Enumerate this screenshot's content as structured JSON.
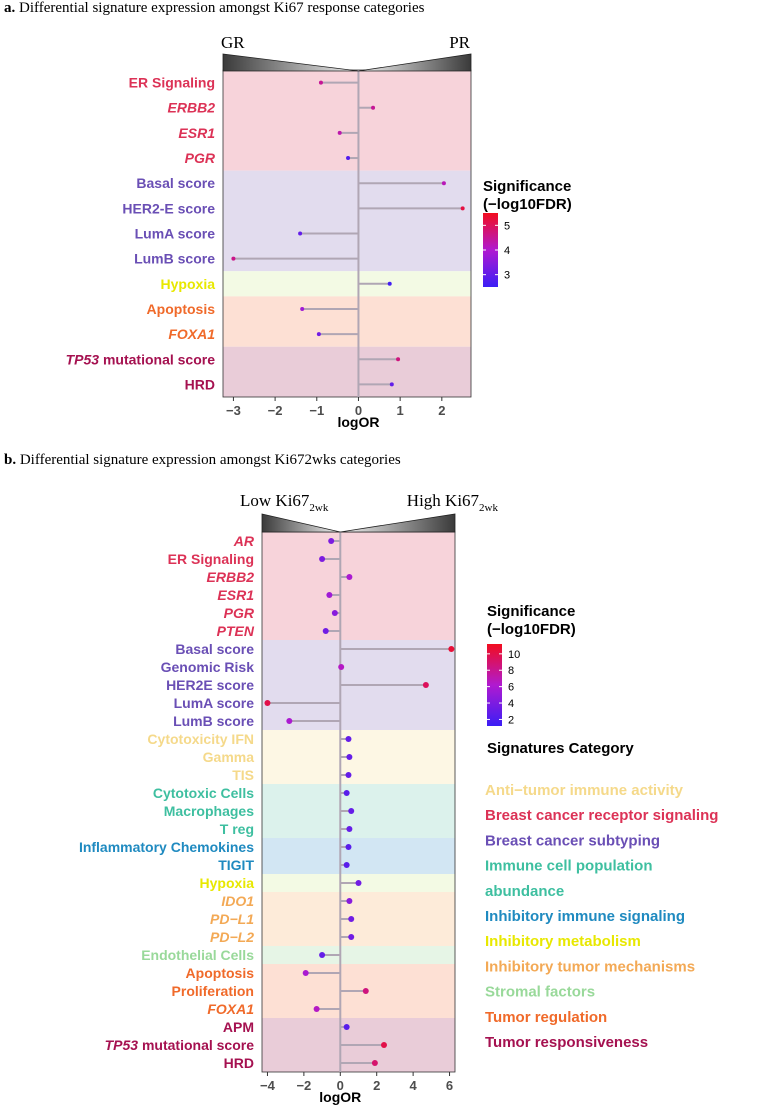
{
  "panel_a": {
    "label": "a.",
    "title": "Differential signature expression amongst Ki67 response categories"
  },
  "panel_b": {
    "label": "b.",
    "title": "Differential signature expression amongst Ki672wks categories"
  },
  "chart_data": [
    {
      "type": "lollipop",
      "id": "a",
      "left_label": "GR",
      "right_label": "PR",
      "xlabel": "logOR",
      "xlim": [
        -3.25,
        2.7
      ],
      "xticks": [
        -3,
        -2,
        -1,
        0,
        1,
        2
      ],
      "legend_title": [
        "Significance",
        "(−log10FDR)"
      ],
      "color_range": [
        2.5,
        5.5
      ],
      "color_ticks": [
        3,
        4,
        5
      ],
      "bands": [
        {
          "color": "#f7d3da",
          "rows": [
            0,
            3
          ]
        },
        {
          "color": "#e2dcee",
          "rows": [
            4,
            7
          ]
        },
        {
          "color": "#f3fae4",
          "rows": [
            8,
            8
          ]
        },
        {
          "color": "#fde0d4",
          "rows": [
            9,
            10
          ]
        },
        {
          "color": "#e9ccd8",
          "rows": [
            11,
            12
          ]
        }
      ],
      "rows": [
        {
          "label": "ER Signaling",
          "italic": false,
          "color": "#dc3256",
          "value": -0.9,
          "sig": 4.5
        },
        {
          "label": "ERBB2",
          "italic": true,
          "color": "#dc3256",
          "value": 0.35,
          "sig": 4.5
        },
        {
          "label": "ESR1",
          "italic": true,
          "color": "#dc3256",
          "value": -0.45,
          "sig": 4.3
        },
        {
          "label": "PGR",
          "italic": true,
          "color": "#dc3256",
          "value": -0.25,
          "sig": 2.8
        },
        {
          "label": "Basal score",
          "italic": false,
          "color": "#6a4fb5",
          "value": 2.05,
          "sig": 4.2
        },
        {
          "label": "HER2-E score",
          "italic": false,
          "color": "#6a4fb5",
          "value": 2.5,
          "sig": 5.2
        },
        {
          "label": "LumA score",
          "italic": false,
          "color": "#6a4fb5",
          "value": -1.4,
          "sig": 3.0
        },
        {
          "label": "LumB score",
          "italic": false,
          "color": "#6a4fb5",
          "value": -3.0,
          "sig": 4.6
        },
        {
          "label": "Hypoxia",
          "italic": false,
          "color": "#e8e800",
          "value": 0.75,
          "sig": 2.6
        },
        {
          "label": "Apoptosis",
          "italic": false,
          "color": "#f06a2a",
          "value": -1.35,
          "sig": 3.8
        },
        {
          "label": "FOXA1",
          "italic": true,
          "color": "#f06a2a",
          "value": -0.95,
          "sig": 3.2
        },
        {
          "label": "TP53",
          "suffix": " mutational score",
          "italic": true,
          "color": "#a51150",
          "value": 0.95,
          "sig": 4.7
        },
        {
          "label": "HRD",
          "italic": false,
          "color": "#a51150",
          "value": 0.8,
          "sig": 3.0
        }
      ]
    },
    {
      "type": "lollipop",
      "id": "b",
      "left_label": "Low Ki67",
      "left_sub": "2wk",
      "right_label": "High Ki67",
      "right_sub": "2wk",
      "xlabel": "logOR",
      "xlim": [
        -4.3,
        6.3
      ],
      "xticks": [
        -4,
        -2,
        0,
        2,
        4,
        6
      ],
      "legend_title": [
        "Significance",
        "(−log10FDR)"
      ],
      "color_range": [
        1.2,
        11.2
      ],
      "color_ticks": [
        2,
        4,
        6,
        8,
        10
      ],
      "bands": [
        {
          "color": "#f7d3da",
          "rows": [
            0,
            5
          ]
        },
        {
          "color": "#e2dcee",
          "rows": [
            6,
            10
          ]
        },
        {
          "color": "#fdf7e4",
          "rows": [
            11,
            13
          ]
        },
        {
          "color": "#dcf2ec",
          "rows": [
            14,
            16
          ]
        },
        {
          "color": "#d2e6f3",
          "rows": [
            17,
            18
          ]
        },
        {
          "color": "#f3fae4",
          "rows": [
            19,
            19
          ]
        },
        {
          "color": "#fdebd9",
          "rows": [
            20,
            22
          ]
        },
        {
          "color": "#e6f5e6",
          "rows": [
            23,
            23
          ]
        },
        {
          "color": "#fde0d4",
          "rows": [
            24,
            26
          ]
        },
        {
          "color": "#e9ccd8",
          "rows": [
            27,
            29
          ]
        }
      ],
      "rows": [
        {
          "label": "AR",
          "italic": true,
          "color": "#dc3256",
          "value": -0.5,
          "sig": 4.0
        },
        {
          "label": "ER Signaling",
          "italic": false,
          "color": "#dc3256",
          "value": -1.0,
          "sig": 4.0
        },
        {
          "label": "ERBB2",
          "italic": true,
          "color": "#dc3256",
          "value": 0.5,
          "sig": 6.0
        },
        {
          "label": "ESR1",
          "italic": true,
          "color": "#dc3256",
          "value": -0.6,
          "sig": 5.5
        },
        {
          "label": "PGR",
          "italic": true,
          "color": "#dc3256",
          "value": -0.3,
          "sig": 4.5
        },
        {
          "label": "PTEN",
          "italic": true,
          "color": "#dc3256",
          "value": -0.8,
          "sig": 3.5
        },
        {
          "label": "Basal score",
          "italic": false,
          "color": "#6a4fb5",
          "value": 6.1,
          "sig": 10.5
        },
        {
          "label": "Genomic Risk",
          "italic": false,
          "color": "#6a4fb5",
          "value": 0.05,
          "sig": 6.5
        },
        {
          "label": "HER2E score",
          "italic": false,
          "color": "#6a4fb5",
          "value": 4.7,
          "sig": 9.5
        },
        {
          "label": "LumA score",
          "italic": false,
          "color": "#6a4fb5",
          "value": -4.0,
          "sig": 10.0
        },
        {
          "label": "LumB score",
          "italic": false,
          "color": "#6a4fb5",
          "value": -2.8,
          "sig": 6.0
        },
        {
          "label": "Cytotoxicity IFN",
          "italic": false,
          "color": "#f5d98a",
          "value": 0.45,
          "sig": 3.0
        },
        {
          "label": "Gamma",
          "italic": false,
          "color": "#f5d98a",
          "value": 0.5,
          "sig": 3.0
        },
        {
          "label": "TIS",
          "italic": false,
          "color": "#f5d98a",
          "value": 0.45,
          "sig": 3.0
        },
        {
          "label": "Cytotoxic Cells",
          "italic": false,
          "color": "#3ebfa0",
          "value": 0.35,
          "sig": 2.5
        },
        {
          "label": "Macrophages",
          "italic": false,
          "color": "#3ebfa0",
          "value": 0.6,
          "sig": 3.0
        },
        {
          "label": "T reg",
          "italic": false,
          "color": "#3ebfa0",
          "value": 0.5,
          "sig": 3.0
        },
        {
          "label": "Inflammatory Chemokines",
          "italic": false,
          "color": "#1f8ac0",
          "value": 0.45,
          "sig": 2.5
        },
        {
          "label": "TIGIT",
          "italic": false,
          "color": "#1f8ac0",
          "value": 0.35,
          "sig": 2.5
        },
        {
          "label": "Hypoxia",
          "italic": false,
          "color": "#e8e800",
          "value": 1.0,
          "sig": 3.5
        },
        {
          "label": "IDO1",
          "italic": true,
          "color": "#f3a955",
          "value": 0.5,
          "sig": 4.5
        },
        {
          "label": "PD−L1",
          "italic": true,
          "color": "#f3a955",
          "value": 0.6,
          "sig": 3.5
        },
        {
          "label": "PD−L2",
          "italic": true,
          "color": "#f3a955",
          "value": 0.6,
          "sig": 3.5
        },
        {
          "label": "Endothelial Cells",
          "italic": false,
          "color": "#99d99a",
          "value": -1.0,
          "sig": 3.0
        },
        {
          "label": "Apoptosis",
          "italic": false,
          "color": "#f06a2a",
          "value": -1.9,
          "sig": 6.0
        },
        {
          "label": "Proliferation",
          "italic": false,
          "color": "#f06a2a",
          "value": 1.4,
          "sig": 8.5
        },
        {
          "label": "FOXA1",
          "italic": true,
          "color": "#f06a2a",
          "value": -1.3,
          "sig": 6.5
        },
        {
          "label": "APM",
          "italic": false,
          "color": "#a51150",
          "value": 0.35,
          "sig": 2.5
        },
        {
          "label": "TP53",
          "suffix": " mutational score",
          "italic": true,
          "color": "#a51150",
          "value": 2.4,
          "sig": 10.0
        },
        {
          "label": "HRD",
          "italic": false,
          "color": "#a51150",
          "value": 1.9,
          "sig": 9.0
        }
      ],
      "category_legend_title": "Signatures Category",
      "categories": [
        {
          "label": "Anti−tumor immune activity",
          "color": "#f5d98a"
        },
        {
          "label": "Breast cancer receptor signaling",
          "color": "#dc3256"
        },
        {
          "label": "Breast cancer subtyping",
          "color": "#6a4fb5"
        },
        {
          "label": "Immune cell population",
          "color": "#3ebfa0"
        },
        {
          "label": "abundance",
          "color": "#3ebfa0"
        },
        {
          "label": "Inhibitory immune signaling",
          "color": "#1f8ac0"
        },
        {
          "label": "Inhibitory metabolism",
          "color": "#e8e800"
        },
        {
          "label": "Inhibitory tumor mechanisms",
          "color": "#f3a955"
        },
        {
          "label": "Stromal factors",
          "color": "#99d99a"
        },
        {
          "label": "Tumor regulation",
          "color": "#f06a2a"
        },
        {
          "label": "Tumor responsiveness",
          "color": "#a51150"
        }
      ]
    }
  ]
}
